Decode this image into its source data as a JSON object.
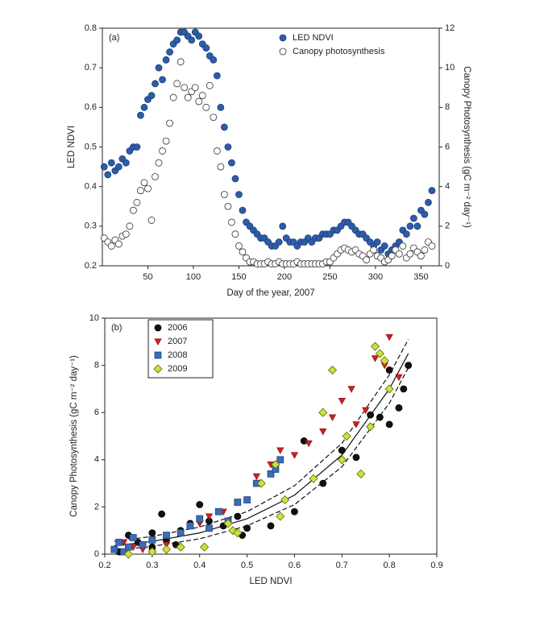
{
  "chart_data": [
    {
      "type": "scatter",
      "label": "(a)",
      "x_label": "Day of the year, 2007",
      "y_label": "LED NDVI",
      "y2_label": "Canopy Photosynthesis (gC m⁻² day⁻¹)",
      "xlim": [
        0,
        370
      ],
      "xticks": [
        50,
        100,
        150,
        200,
        250,
        300,
        350
      ],
      "ylim": [
        0.2,
        0.8
      ],
      "yticks": [
        0.2,
        0.3,
        0.4,
        0.5,
        0.6,
        0.7,
        0.8
      ],
      "y2lim": [
        0,
        12
      ],
      "y2ticks": [
        0,
        2,
        4,
        6,
        8,
        10,
        12
      ],
      "legend": "upper right",
      "series": [
        {
          "name": "LED NDVI",
          "marker": "circle",
          "color": "#2f5ca8",
          "edgecolor": "#1e3f7a",
          "x": [
            2,
            6,
            10,
            14,
            18,
            22,
            26,
            30,
            34,
            38,
            42,
            46,
            50,
            54,
            58,
            62,
            66,
            70,
            74,
            78,
            82,
            86,
            90,
            94,
            98,
            102,
            106,
            110,
            114,
            118,
            122,
            126,
            130,
            134,
            138,
            142,
            146,
            150,
            154,
            158,
            162,
            166,
            170,
            174,
            178,
            182,
            186,
            190,
            194,
            198,
            202,
            206,
            210,
            214,
            218,
            222,
            226,
            230,
            234,
            238,
            242,
            246,
            250,
            254,
            258,
            262,
            266,
            270,
            274,
            278,
            282,
            286,
            290,
            294,
            298,
            302,
            306,
            310,
            314,
            318,
            322,
            326,
            330,
            334,
            338,
            342,
            346,
            350,
            354,
            358,
            362
          ],
          "values": [
            0.45,
            0.43,
            0.46,
            0.44,
            0.45,
            0.47,
            0.46,
            0.49,
            0.5,
            0.5,
            0.58,
            0.6,
            0.62,
            0.63,
            0.66,
            0.7,
            0.67,
            0.72,
            0.74,
            0.76,
            0.77,
            0.79,
            0.79,
            0.78,
            0.77,
            0.79,
            0.78,
            0.76,
            0.75,
            0.73,
            0.72,
            0.68,
            0.6,
            0.55,
            0.5,
            0.46,
            0.42,
            0.38,
            0.34,
            0.31,
            0.3,
            0.29,
            0.28,
            0.27,
            0.27,
            0.26,
            0.25,
            0.25,
            0.26,
            0.3,
            0.27,
            0.26,
            0.26,
            0.25,
            0.26,
            0.26,
            0.27,
            0.26,
            0.27,
            0.27,
            0.28,
            0.28,
            0.28,
            0.29,
            0.29,
            0.3,
            0.31,
            0.31,
            0.3,
            0.29,
            0.28,
            0.28,
            0.27,
            0.26,
            0.25,
            0.26,
            0.24,
            0.25,
            0.23,
            0.24,
            0.25,
            0.26,
            0.29,
            0.28,
            0.3,
            0.32,
            0.3,
            0.34,
            0.33,
            0.36,
            0.39
          ]
        },
        {
          "name": "Canopy photosynthesis",
          "marker": "circle",
          "color": "#ffffff",
          "edgecolor": "#333333",
          "axis": "y2",
          "x": [
            2,
            6,
            10,
            14,
            18,
            22,
            26,
            30,
            34,
            38,
            42,
            46,
            50,
            54,
            58,
            62,
            66,
            70,
            74,
            78,
            82,
            86,
            90,
            94,
            98,
            102,
            106,
            110,
            114,
            118,
            122,
            126,
            130,
            134,
            138,
            142,
            146,
            150,
            154,
            158,
            162,
            166,
            170,
            174,
            178,
            182,
            186,
            190,
            194,
            198,
            202,
            206,
            210,
            214,
            218,
            222,
            226,
            230,
            234,
            238,
            242,
            246,
            250,
            254,
            258,
            262,
            266,
            270,
            274,
            278,
            282,
            286,
            290,
            294,
            298,
            302,
            306,
            310,
            314,
            318,
            322,
            326,
            330,
            334,
            338,
            342,
            346,
            350,
            354,
            358,
            362
          ],
          "values": [
            1.4,
            1.2,
            1.0,
            1.3,
            1.1,
            1.5,
            1.6,
            2.0,
            2.8,
            3.2,
            3.8,
            4.2,
            3.9,
            2.3,
            4.5,
            5.2,
            5.8,
            6.3,
            7.2,
            8.5,
            9.2,
            10.3,
            9.0,
            8.5,
            8.8,
            9.0,
            8.3,
            8.6,
            8.0,
            9.1,
            7.5,
            5.8,
            5.0,
            3.6,
            3.0,
            2.2,
            1.6,
            1.0,
            0.7,
            0.4,
            0.2,
            0.2,
            0.1,
            0.1,
            0.1,
            0.2,
            0.1,
            0.1,
            0.2,
            0.1,
            0.1,
            0.1,
            0.1,
            0.2,
            0.1,
            0.1,
            0.1,
            0.1,
            0.1,
            0.1,
            0.1,
            0.2,
            0.2,
            0.4,
            0.6,
            0.8,
            0.9,
            0.8,
            0.7,
            0.8,
            0.6,
            0.5,
            0.3,
            0.6,
            0.8,
            0.5,
            0.4,
            0.2,
            0.3,
            0.5,
            0.8,
            0.6,
            1.0,
            0.4,
            0.6,
            0.9,
            0.7,
            0.5,
            0.8,
            1.2,
            1.0
          ]
        }
      ]
    },
    {
      "type": "scatter",
      "label": "(b)",
      "x_label": "LED NDVI",
      "y_label": "Canopy Photosynthesis (gC m⁻² day⁻¹)",
      "xlim": [
        0.2,
        0.9
      ],
      "xticks": [
        0.2,
        0.3,
        0.4,
        0.5,
        0.6,
        0.7,
        0.8,
        0.9
      ],
      "ylim": [
        0,
        10
      ],
      "yticks": [
        0,
        2,
        4,
        6,
        8,
        10
      ],
      "legend": "upper left",
      "series": [
        {
          "name": "2006",
          "marker": "circle",
          "color": "#111111",
          "edgecolor": "#000000",
          "x": [
            0.23,
            0.25,
            0.27,
            0.3,
            0.32,
            0.33,
            0.36,
            0.38,
            0.4,
            0.42,
            0.45,
            0.48,
            0.49,
            0.55,
            0.6,
            0.62,
            0.66,
            0.7,
            0.73,
            0.76,
            0.78,
            0.8,
            0.82,
            0.84,
            0.3,
            0.35,
            0.5,
            0.8,
            0.83
          ],
          "values": [
            0.1,
            0.8,
            0.5,
            0.3,
            1.7,
            0.6,
            1.0,
            1.3,
            2.1,
            1.4,
            1.2,
            1.6,
            0.8,
            1.2,
            1.8,
            4.8,
            3.0,
            4.4,
            4.1,
            5.9,
            5.8,
            5.5,
            6.2,
            8.0,
            0.9,
            0.4,
            1.1,
            7.8,
            7.0
          ]
        },
        {
          "name": "2007",
          "marker": "triangle-down",
          "color": "#cc2222",
          "edgecolor": "#991111",
          "x": [
            0.24,
            0.26,
            0.28,
            0.3,
            0.33,
            0.4,
            0.42,
            0.45,
            0.52,
            0.55,
            0.57,
            0.6,
            0.63,
            0.66,
            0.68,
            0.7,
            0.72,
            0.75,
            0.77,
            0.79,
            0.8,
            0.82,
            0.73
          ],
          "values": [
            0.5,
            0.3,
            0.2,
            0.1,
            0.4,
            1.3,
            1.6,
            1.8,
            3.3,
            3.8,
            4.4,
            4.2,
            4.7,
            5.2,
            5.8,
            6.5,
            7.0,
            6.1,
            8.3,
            8.0,
            9.2,
            7.5,
            5.5
          ]
        },
        {
          "name": "2008",
          "marker": "square",
          "color": "#3a6db5",
          "edgecolor": "#244a80",
          "x": [
            0.22,
            0.23,
            0.24,
            0.25,
            0.26,
            0.28,
            0.3,
            0.33,
            0.36,
            0.38,
            0.4,
            0.42,
            0.44,
            0.46,
            0.48,
            0.5,
            0.52,
            0.55,
            0.56,
            0.57
          ],
          "values": [
            0.2,
            0.5,
            0.1,
            0.3,
            0.7,
            0.4,
            0.6,
            0.8,
            0.9,
            1.2,
            1.5,
            1.1,
            1.8,
            1.4,
            2.2,
            2.3,
            3.0,
            3.4,
            3.6,
            4.0
          ]
        },
        {
          "name": "2009",
          "marker": "diamond",
          "color": "#cfe03a",
          "edgecolor": "#5a6a10",
          "x": [
            0.25,
            0.3,
            0.33,
            0.36,
            0.41,
            0.46,
            0.47,
            0.48,
            0.53,
            0.57,
            0.58,
            0.64,
            0.66,
            0.68,
            0.7,
            0.71,
            0.74,
            0.76,
            0.77,
            0.78,
            0.79,
            0.8,
            0.56
          ],
          "values": [
            0.0,
            0.1,
            0.2,
            0.3,
            0.3,
            1.3,
            1.0,
            0.9,
            3.0,
            1.6,
            2.3,
            3.2,
            6.0,
            7.8,
            4.0,
            5.0,
            3.4,
            5.4,
            8.8,
            8.5,
            8.2,
            7.0,
            3.8
          ]
        }
      ],
      "curves": [
        {
          "dashed": false,
          "color": "#111111",
          "x": [
            0.22,
            0.3,
            0.4,
            0.5,
            0.6,
            0.7,
            0.8,
            0.84
          ],
          "values": [
            0.36,
            0.54,
            0.9,
            1.5,
            2.5,
            4.2,
            7.0,
            8.5
          ]
        },
        {
          "dashed": true,
          "color": "#111111",
          "x": [
            0.22,
            0.3,
            0.4,
            0.5,
            0.6,
            0.7,
            0.8,
            0.84
          ],
          "values": [
            0.55,
            0.75,
            1.15,
            1.8,
            2.9,
            4.7,
            7.6,
            9.1
          ]
        },
        {
          "dashed": true,
          "color": "#111111",
          "x": [
            0.22,
            0.3,
            0.4,
            0.5,
            0.6,
            0.7,
            0.8,
            0.84
          ],
          "values": [
            0.17,
            0.33,
            0.65,
            1.2,
            2.1,
            3.7,
            6.4,
            7.9
          ]
        }
      ]
    }
  ]
}
